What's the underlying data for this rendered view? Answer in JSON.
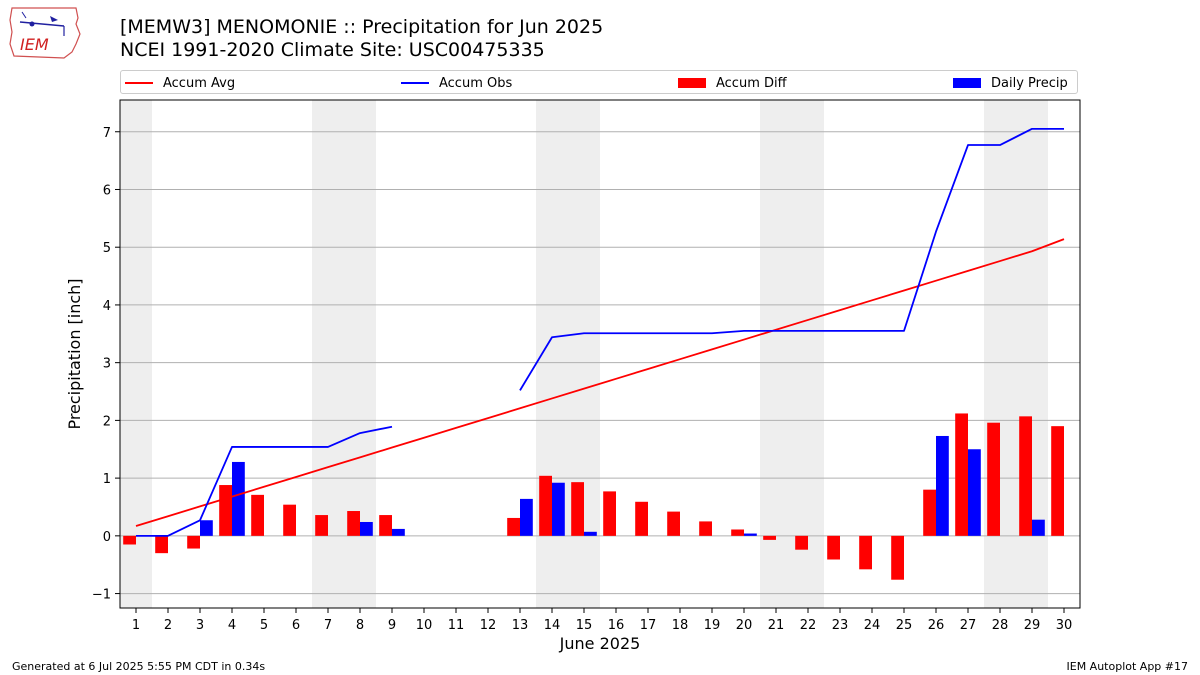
{
  "header": {
    "title_line1": "[MEMW3] MENOMONIE :: Precipitation for Jun 2025",
    "title_line2": "NCEI 1991-2020 Climate Site: USC00475335",
    "logo_text": "IEM"
  },
  "footer": {
    "left": "Generated at 6 Jul 2025 5:55 PM CDT in 0.34s",
    "right": "IEM Autoplot App #17"
  },
  "colors": {
    "accum_avg": "#ff0000",
    "accum_obs": "#0000ff",
    "accum_diff": "#ff0000",
    "daily_precip": "#0000ff",
    "weekend_shade": "#eeeeee",
    "grid": "#b0b0b0"
  },
  "chart_data": {
    "type": "bar",
    "xlabel": "June 2025",
    "ylabel": "Precipitation [inch]",
    "x": [
      1,
      2,
      3,
      4,
      5,
      6,
      7,
      8,
      9,
      10,
      11,
      12,
      13,
      14,
      15,
      16,
      17,
      18,
      19,
      20,
      21,
      22,
      23,
      24,
      25,
      26,
      27,
      28,
      29,
      30
    ],
    "xlim": [
      0.5,
      30.5
    ],
    "ylim": [
      -1.25,
      7.55
    ],
    "yticks": [
      -1,
      0,
      1,
      2,
      3,
      4,
      5,
      6,
      7
    ],
    "grid": "horizontal",
    "legend_position": "top",
    "weekend_shading": [
      [
        0.5,
        1.5
      ],
      [
        6.5,
        8.5
      ],
      [
        13.5,
        15.5
      ],
      [
        20.5,
        22.5
      ],
      [
        27.5,
        29.5
      ]
    ],
    "legend": [
      "Accum Avg",
      "Accum Obs",
      "Accum Diff",
      "Daily Precip"
    ],
    "series": [
      {
        "name": "Accum Avg",
        "kind": "line",
        "values": [
          0.17,
          0.34,
          0.51,
          0.68,
          0.85,
          1.02,
          1.19,
          1.36,
          1.53,
          1.7,
          1.87,
          2.04,
          2.21,
          2.38,
          2.55,
          2.72,
          2.89,
          3.06,
          3.23,
          3.4,
          3.57,
          3.74,
          3.91,
          4.08,
          4.25,
          4.42,
          4.59,
          4.76,
          4.93,
          5.14
        ]
      },
      {
        "name": "Accum Obs",
        "kind": "line",
        "values": [
          0.0,
          0.0,
          0.27,
          1.54,
          1.54,
          1.54,
          1.54,
          1.78,
          1.89,
          null,
          null,
          null,
          2.52,
          3.44,
          3.51,
          3.51,
          3.51,
          3.51,
          3.51,
          3.55,
          3.55,
          3.55,
          3.55,
          3.55,
          3.55,
          5.27,
          6.77,
          6.77,
          7.05,
          7.05
        ]
      },
      {
        "name": "Accum Diff",
        "kind": "bar",
        "values": [
          -0.15,
          -0.3,
          -0.22,
          0.88,
          0.71,
          0.54,
          0.36,
          0.43,
          0.36,
          null,
          null,
          null,
          0.31,
          1.04,
          0.93,
          0.77,
          0.59,
          0.42,
          0.25,
          0.11,
          -0.07,
          -0.24,
          -0.41,
          -0.58,
          -0.76,
          0.8,
          2.12,
          1.96,
          2.07,
          1.9
        ]
      },
      {
        "name": "Daily Precip",
        "kind": "bar",
        "values": [
          0,
          0,
          0.27,
          1.28,
          0,
          0,
          0,
          0.24,
          0.12,
          0,
          0,
          0,
          0.64,
          0.92,
          0.07,
          0,
          0,
          0,
          0,
          0.04,
          0,
          0,
          0,
          0,
          0,
          1.73,
          1.5,
          0,
          0.28,
          0
        ]
      }
    ]
  }
}
